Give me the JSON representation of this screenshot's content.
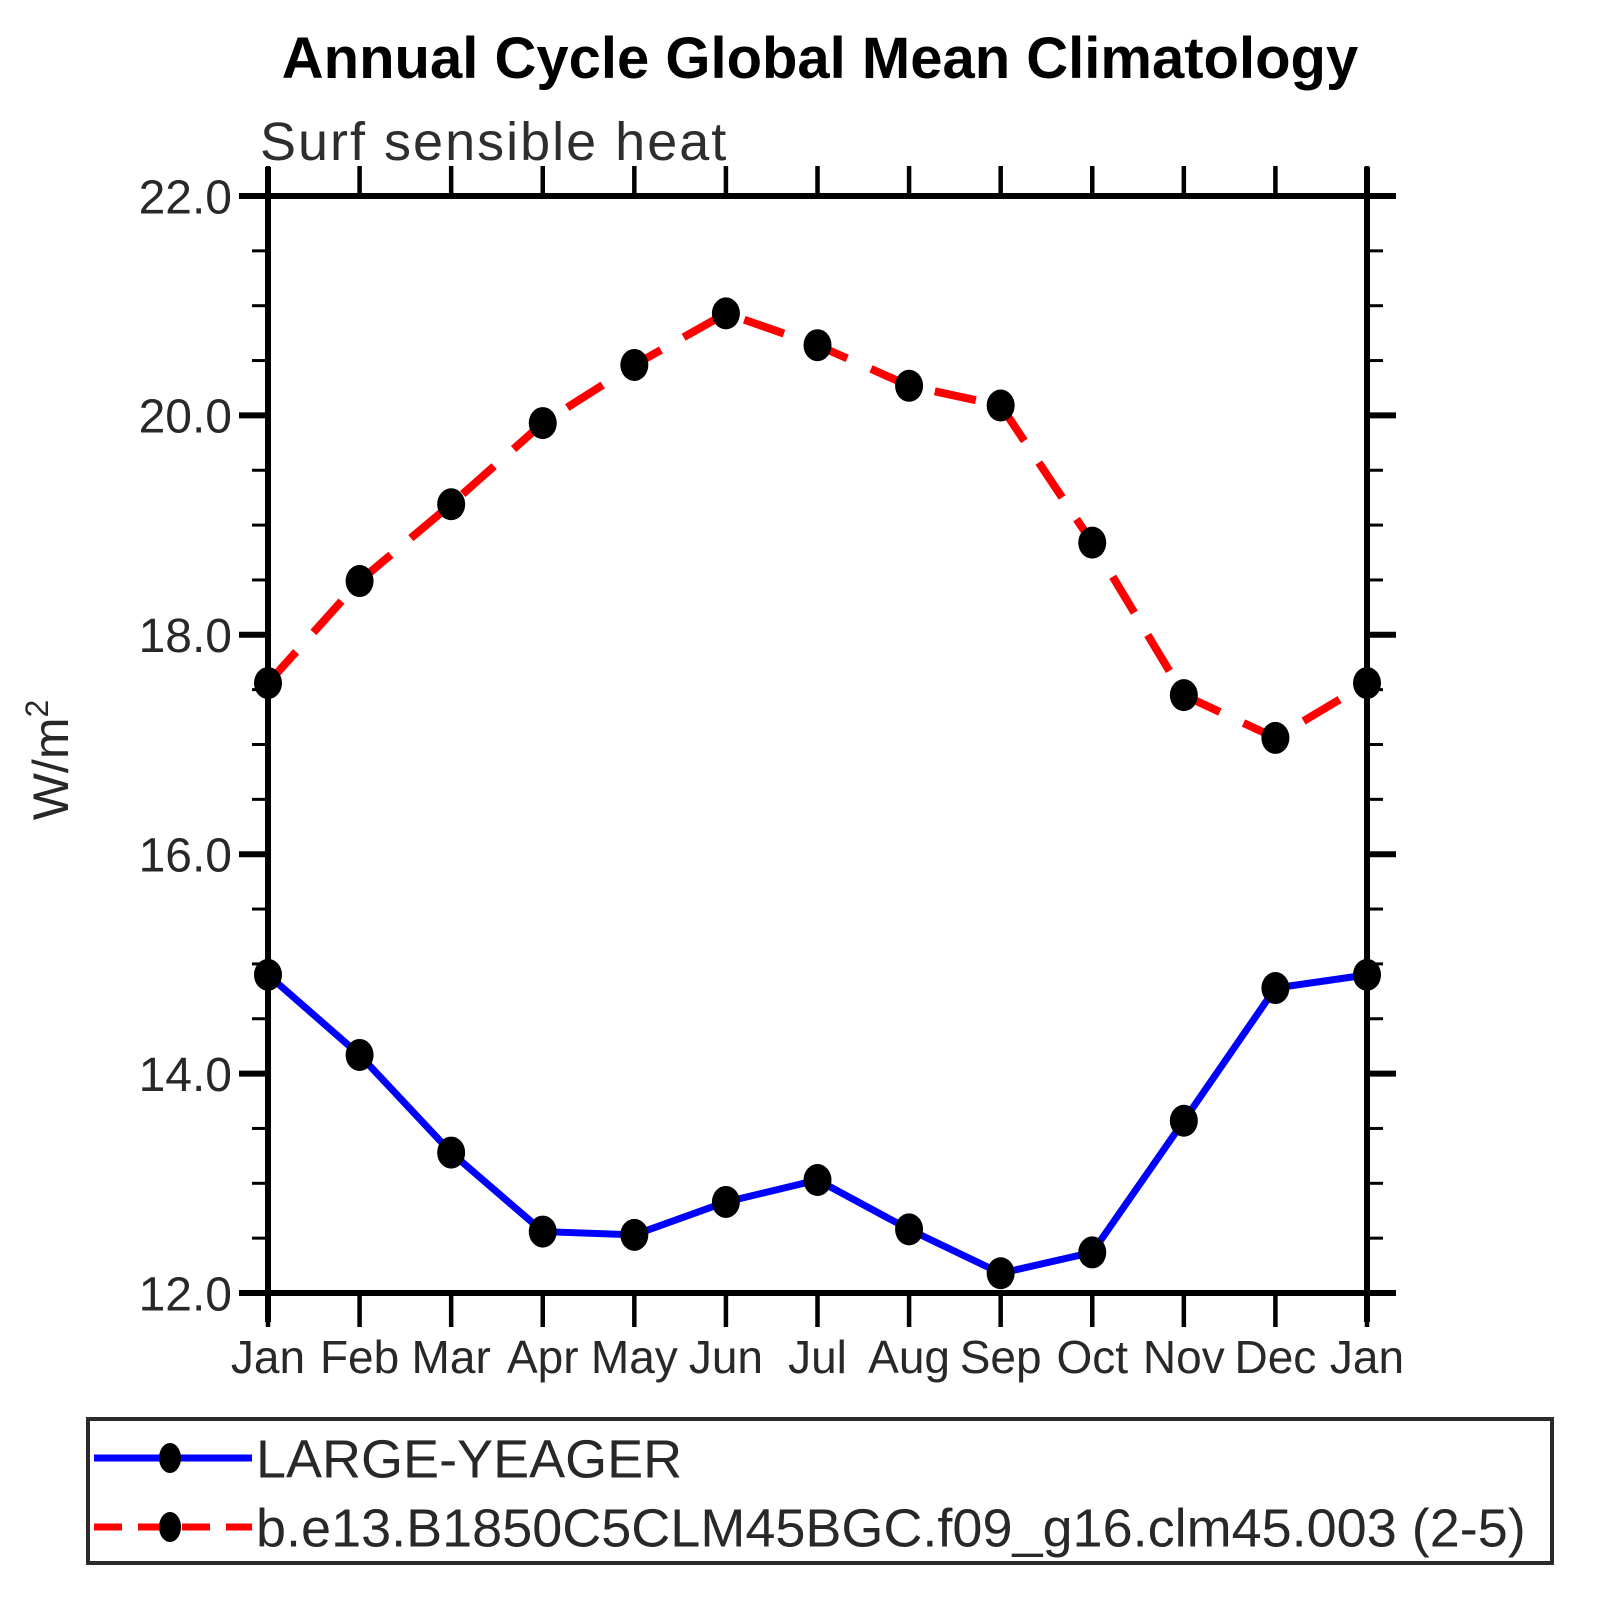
{
  "title": "Annual Cycle Global Mean Climatology",
  "subtitle": "Surf sensible heat",
  "y_axis": {
    "label_base": "W/m",
    "label_exponent": "2",
    "min": 12.0,
    "max": 22.0,
    "major_step": 2.0,
    "minor_step": 0.5,
    "tick_labels": [
      "12.0",
      "14.0",
      "16.0",
      "18.0",
      "20.0",
      "22.0"
    ]
  },
  "x_axis": {
    "tick_labels": [
      "Jan",
      "Feb",
      "Mar",
      "Apr",
      "May",
      "Jun",
      "Jul",
      "Aug",
      "Sep",
      "Oct",
      "Nov",
      "Dec",
      "Jan"
    ]
  },
  "legend": {
    "entries": [
      {
        "label": "LARGE-YEAGER",
        "line_color": "#0000ff",
        "line_style": "solid",
        "marker": "filled-circle",
        "marker_color": "#000000"
      },
      {
        "label": "b.e13.B1850C5CLM45BGC.f09_g16.clm45.003 (2-5)",
        "line_color": "#ff0000",
        "line_style": "dashed",
        "marker": "filled-circle",
        "marker_color": "#000000"
      }
    ]
  },
  "chart_data": {
    "type": "line",
    "title": "Annual Cycle Global Mean Climatology",
    "subtitle": "Surf sensible heat",
    "ylabel": "W/m²",
    "xlabel": "",
    "categories": [
      "Jan",
      "Feb",
      "Mar",
      "Apr",
      "May",
      "Jun",
      "Jul",
      "Aug",
      "Sep",
      "Oct",
      "Nov",
      "Dec",
      "Jan"
    ],
    "series": [
      {
        "name": "LARGE-YEAGER",
        "color": "#0000ff",
        "line_style": "solid",
        "marker": "filled-circle",
        "marker_color": "#000000",
        "values": [
          14.9,
          14.17,
          13.28,
          12.56,
          12.53,
          12.83,
          13.03,
          12.58,
          12.18,
          12.37,
          13.57,
          14.78,
          14.9
        ]
      },
      {
        "name": "b.e13.B1850C5CLM45BGC.f09_g16.clm45.003 (2-5)",
        "color": "#ff0000",
        "line_style": "dashed",
        "marker": "filled-circle",
        "marker_color": "#000000",
        "values": [
          17.56,
          18.49,
          19.19,
          19.93,
          20.46,
          20.93,
          20.64,
          20.27,
          20.09,
          18.84,
          17.45,
          17.06,
          17.56
        ]
      }
    ],
    "ylim": [
      12.0,
      22.0
    ],
    "y_major_step": 2.0,
    "y_minor_step": 0.5,
    "grid": false,
    "legend_position": "bottom-left-box",
    "units": "W/m2"
  }
}
